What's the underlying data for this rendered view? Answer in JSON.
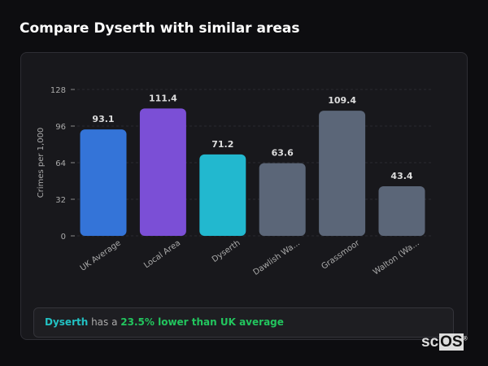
{
  "title": "Compare Dyserth with similar areas",
  "chart_data": {
    "type": "bar",
    "categories": [
      "UK Average",
      "Local Area",
      "Dyserth",
      "Dawlish Wa...",
      "Grassmoor",
      "Walton (Wa..."
    ],
    "values": [
      93.1,
      111.4,
      71.2,
      63.6,
      109.4,
      43.4
    ],
    "colors": [
      "#3474d8",
      "#7b4fd6",
      "#22b8cf",
      "#5b6678",
      "#5b6678",
      "#5b6678"
    ],
    "ylabel": "Crimes per 1,000",
    "ylim": [
      0,
      128
    ],
    "yticks": [
      0,
      32,
      64,
      96,
      128
    ],
    "grid": true
  },
  "summary": {
    "place": "Dyserth",
    "middle": " has a ",
    "comparison": "23.5% lower than UK average"
  },
  "logo": {
    "a": "sc",
    "b": "OS",
    "mark": "®"
  }
}
